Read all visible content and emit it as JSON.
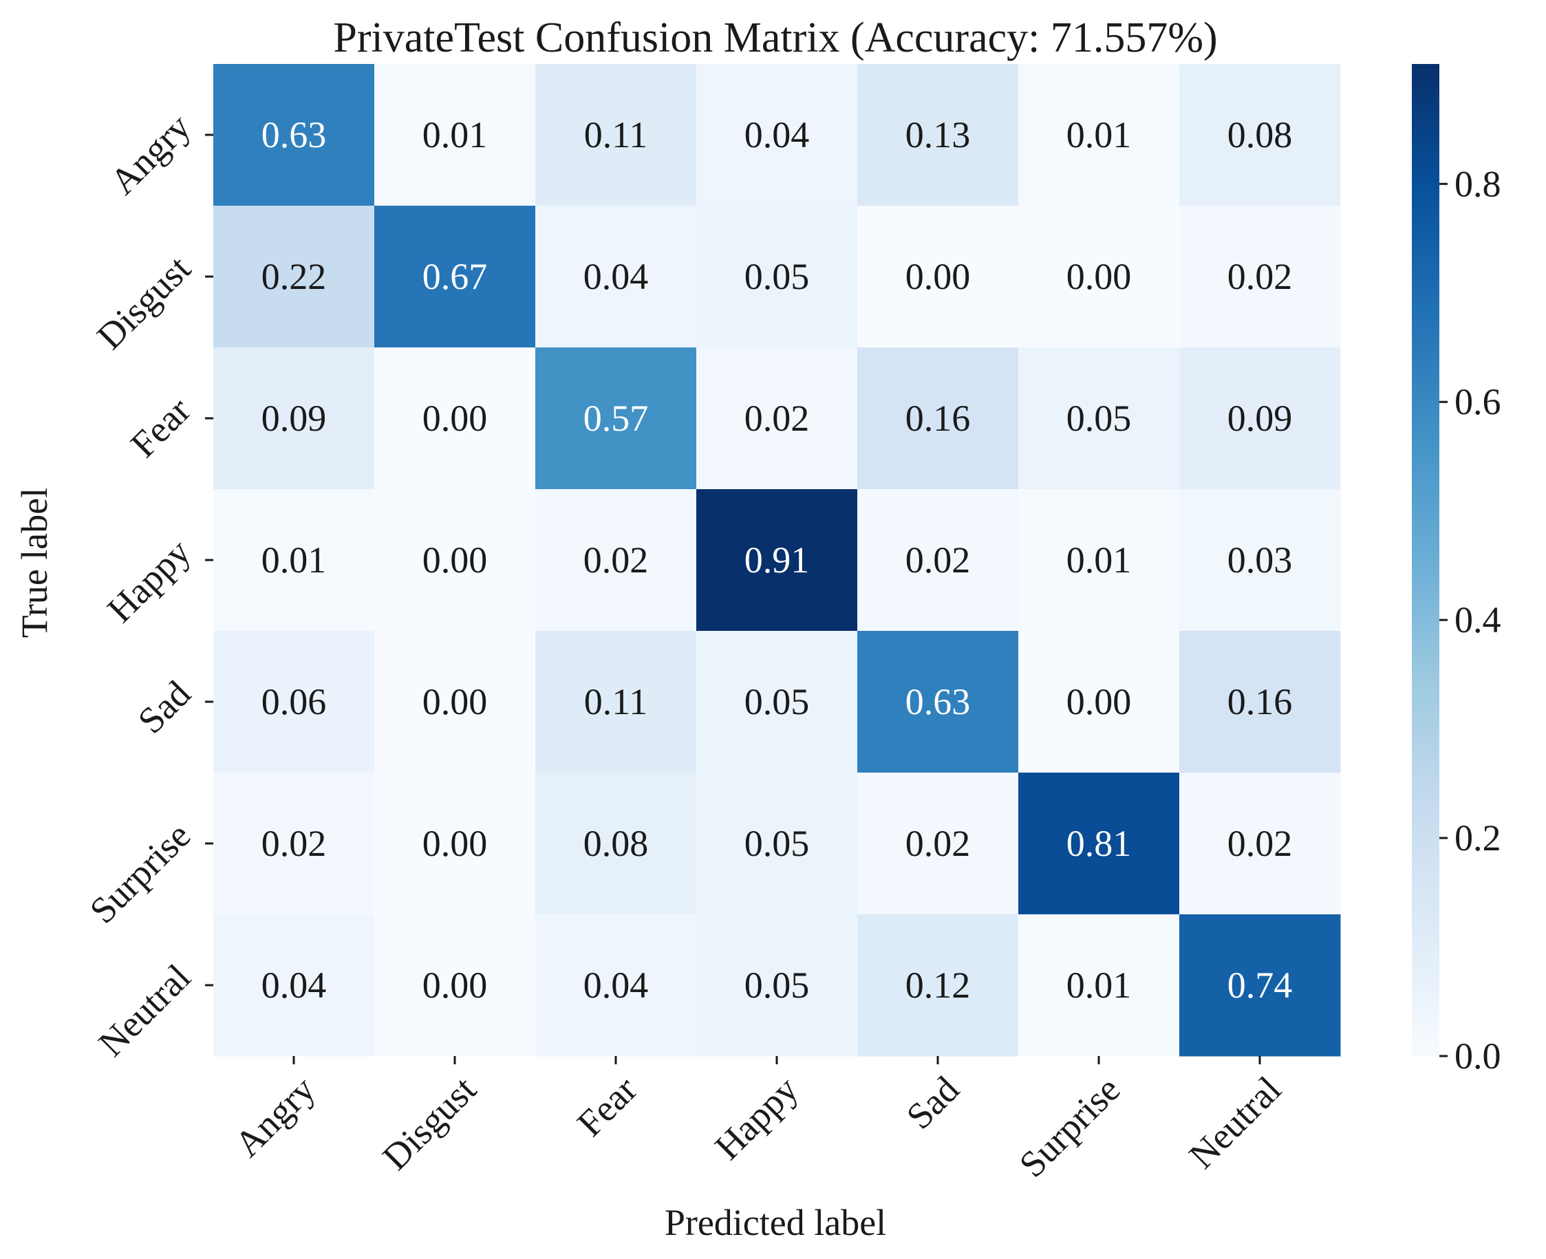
{
  "chart_data": {
    "type": "heatmap",
    "title": "PrivateTest Confusion Matrix (Accuracy: 71.557%)",
    "xlabel": "Predicted label",
    "ylabel": "True label",
    "x_categories": [
      "Angry",
      "Disgust",
      "Fear",
      "Happy",
      "Sad",
      "Surprise",
      "Neutral"
    ],
    "y_categories": [
      "Angry",
      "Disgust",
      "Fear",
      "Happy",
      "Sad",
      "Surprise",
      "Neutral"
    ],
    "values": [
      [
        0.63,
        0.01,
        0.11,
        0.04,
        0.13,
        0.01,
        0.08
      ],
      [
        0.22,
        0.67,
        0.04,
        0.05,
        0.0,
        0.0,
        0.02
      ],
      [
        0.09,
        0.0,
        0.57,
        0.02,
        0.16,
        0.05,
        0.09
      ],
      [
        0.01,
        0.0,
        0.02,
        0.91,
        0.02,
        0.01,
        0.03
      ],
      [
        0.06,
        0.0,
        0.11,
        0.05,
        0.63,
        0.0,
        0.16
      ],
      [
        0.02,
        0.0,
        0.08,
        0.05,
        0.02,
        0.81,
        0.02
      ],
      [
        0.04,
        0.0,
        0.04,
        0.05,
        0.12,
        0.01,
        0.74
      ]
    ],
    "colormap": "Blues",
    "colorbar": {
      "range": [
        0.0,
        0.91
      ],
      "ticks": [
        0.0,
        0.2,
        0.4,
        0.6,
        0.8
      ],
      "tick_labels": [
        "0.0",
        "0.2",
        "0.4",
        "0.6",
        "0.8"
      ]
    }
  }
}
